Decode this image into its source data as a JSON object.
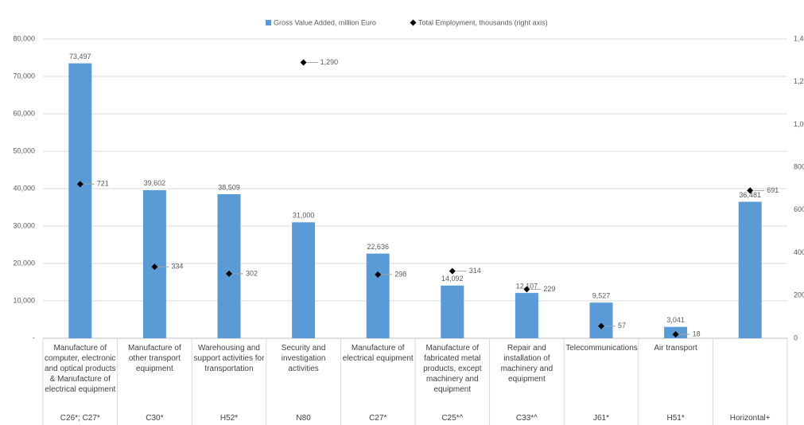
{
  "chart_data": {
    "type": "bar",
    "legend": "top",
    "grid": true,
    "categories": [
      "Manufacture of computer, electronic and optical products & Manufacture of electrical equipment",
      "Manufacture of other transport equipment",
      "Warehousing and support activities for transportation",
      "Security and investigation activities",
      "Manufacture of electrical equipment",
      "Manufacture of fabricated metal products, except machinery and equipment",
      "Repair and installation of machinery and equipment",
      "Telecommunications",
      "Air transport",
      null
    ],
    "codes": [
      "C26*; C27*",
      "C30*",
      "H52*",
      "N80",
      "C27*",
      "C25*^",
      "C33*^",
      "J61*",
      "H51*",
      "Horizontal+"
    ],
    "series": [
      {
        "name": "Gross Value Added, million Euro",
        "color": "#5b9bd5",
        "type": "bar",
        "values": [
          73497,
          39602,
          38509,
          31000,
          22636,
          14092,
          12107,
          9527,
          3041,
          36481
        ],
        "value_labels": [
          "73,497",
          "39,602",
          "38,509",
          "31,000",
          "22,636",
          "14,092",
          "12,107",
          "9,527",
          "3,041",
          "36,481"
        ]
      },
      {
        "name": "Total Employment, thousands (right axis)",
        "color": "#000000",
        "type": "scatter",
        "axis": "y2",
        "marker": "diamond",
        "values": [
          721,
          334,
          302,
          1290,
          298,
          314,
          229,
          57,
          18,
          691
        ],
        "value_labels": [
          "721",
          "334",
          "302",
          "1,290",
          "298",
          "314",
          "229",
          "57",
          "18",
          "691"
        ]
      }
    ],
    "ylim": [
      0,
      80000
    ],
    "yticks": [
      {
        "value": 0,
        "label": "-"
      },
      {
        "value": 10000,
        "label": "10,000"
      },
      {
        "value": 20000,
        "label": "20,000"
      },
      {
        "value": 30000,
        "label": "30,000"
      },
      {
        "value": 40000,
        "label": "40,000"
      },
      {
        "value": 50000,
        "label": "50,000"
      },
      {
        "value": 60000,
        "label": "60,000"
      },
      {
        "value": 70000,
        "label": "70,000"
      },
      {
        "value": 80000,
        "label": "80,000"
      }
    ],
    "y2lim": [
      0,
      1400
    ],
    "y2ticks": [
      0,
      200,
      400,
      600,
      800,
      {
        "value": 1000,
        "label": "1,000"
      },
      {
        "value": 1200,
        "label": "1,200"
      },
      {
        "value": 1400,
        "label": "1,400"
      }
    ]
  }
}
